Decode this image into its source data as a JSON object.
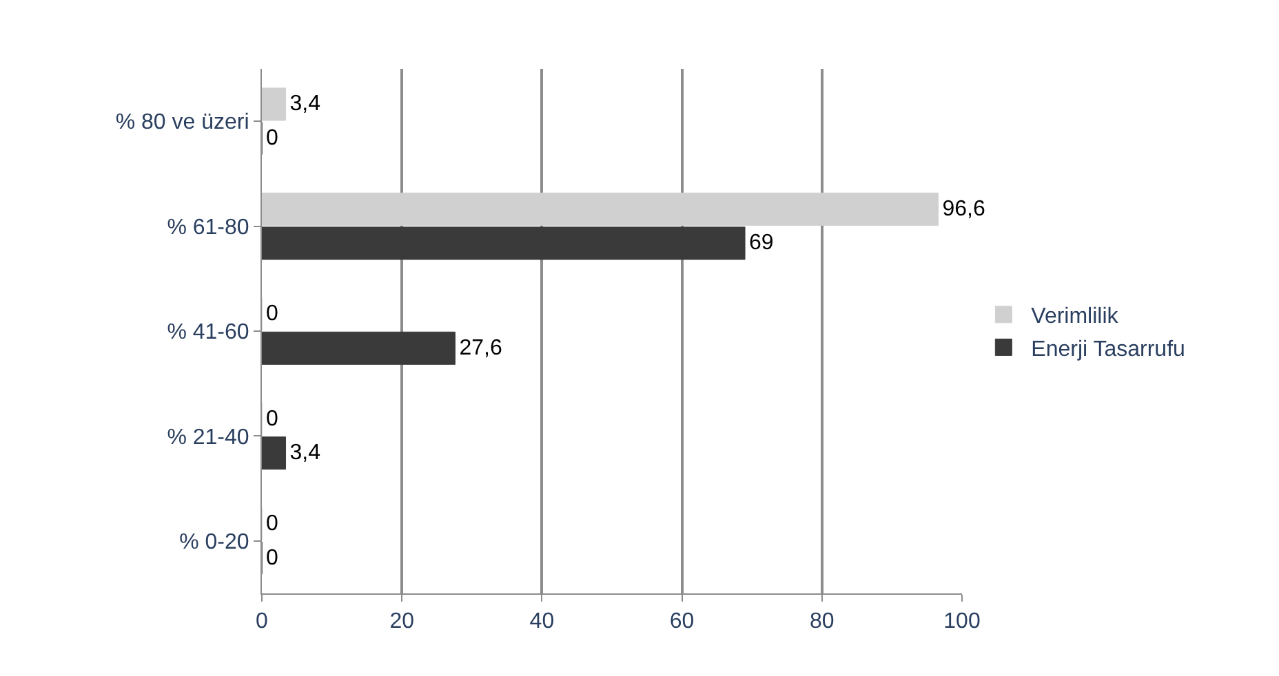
{
  "chart_data": {
    "type": "bar",
    "orientation": "horizontal",
    "categories": [
      "% 80 ve üzeri",
      "% 61-80",
      "% 41-60",
      "% 21-40",
      "% 0-20"
    ],
    "series": [
      {
        "name": "Verimlilik",
        "color": "#d0d0d0",
        "values": [
          3.4,
          96.6,
          0,
          0,
          0
        ],
        "value_labels": [
          "3,4",
          "96,6",
          "0",
          "0",
          "0"
        ]
      },
      {
        "name": "Enerji Tasarrufu",
        "color": "#3a3a3a",
        "values": [
          0,
          69,
          27.6,
          3.4,
          0
        ],
        "value_labels": [
          "0",
          "69",
          "27,6",
          "3,4",
          "0"
        ]
      }
    ],
    "xlim": [
      0,
      100
    ],
    "xticks": [
      0,
      20,
      40,
      60,
      80,
      100
    ],
    "grid": "x",
    "legend": "right"
  }
}
